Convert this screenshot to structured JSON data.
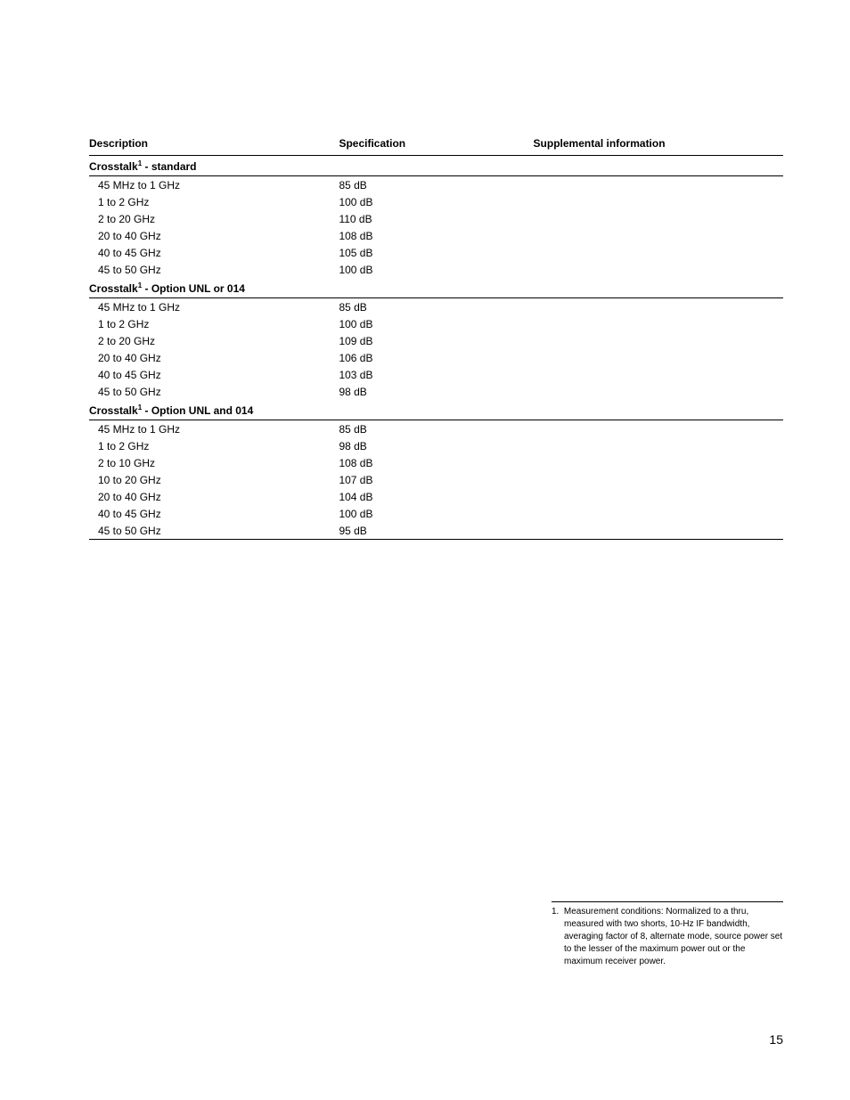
{
  "table": {
    "headers": {
      "description": "Description",
      "specification": "Specification",
      "supplemental": "Supplemental information"
    },
    "sections": [
      {
        "title_prefix": "Crosstalk",
        "title_sup": "1",
        "title_suffix": " - standard",
        "rows": [
          {
            "desc": "45 MHz to 1 GHz",
            "spec": "85 dB"
          },
          {
            "desc": "1 to 2 GHz",
            "spec": "100 dB"
          },
          {
            "desc": "2 to 20 GHz",
            "spec": "110 dB"
          },
          {
            "desc": "20 to 40 GHz",
            "spec": "108 dB"
          },
          {
            "desc": "40 to 45 GHz",
            "spec": "105 dB"
          },
          {
            "desc": "45 to 50 GHz",
            "spec": "100 dB"
          }
        ]
      },
      {
        "title_prefix": "Crosstalk",
        "title_sup": "1",
        "title_suffix": " - Option UNL or 014",
        "rows": [
          {
            "desc": "45 MHz to 1 GHz",
            "spec": "85 dB"
          },
          {
            "desc": "1 to 2 GHz",
            "spec": "100 dB"
          },
          {
            "desc": "2 to 20 GHz",
            "spec": "109 dB"
          },
          {
            "desc": "20 to 40 GHz",
            "spec": "106 dB"
          },
          {
            "desc": "40 to 45 GHz",
            "spec": "103 dB"
          },
          {
            "desc": "45 to 50 GHz",
            "spec": "98 dB"
          }
        ]
      },
      {
        "title_prefix": "Crosstalk",
        "title_sup": "1",
        "title_suffix": " - Option UNL and 014",
        "rows": [
          {
            "desc": "45 MHz to 1 GHz",
            "spec": "85 dB"
          },
          {
            "desc": "1 to 2 GHz",
            "spec": "98 dB"
          },
          {
            "desc": "2 to 10 GHz",
            "spec": "108 dB"
          },
          {
            "desc": "10 to 20 GHz",
            "spec": "107 dB"
          },
          {
            "desc": "20 to 40 GHz",
            "spec": "104 dB"
          },
          {
            "desc": "40 to 45 GHz",
            "spec": "100 dB"
          },
          {
            "desc": "45 to 50 GHz",
            "spec": "95 dB"
          }
        ]
      }
    ]
  },
  "footnote": {
    "number": "1.",
    "text": "Measurement conditions: Normalized to a thru, measured with two shorts, 10-Hz IF bandwidth, averaging factor of 8, alternate mode, source power set to the lesser of the maximum power out or the maximum receiver power."
  },
  "page_number": "15"
}
